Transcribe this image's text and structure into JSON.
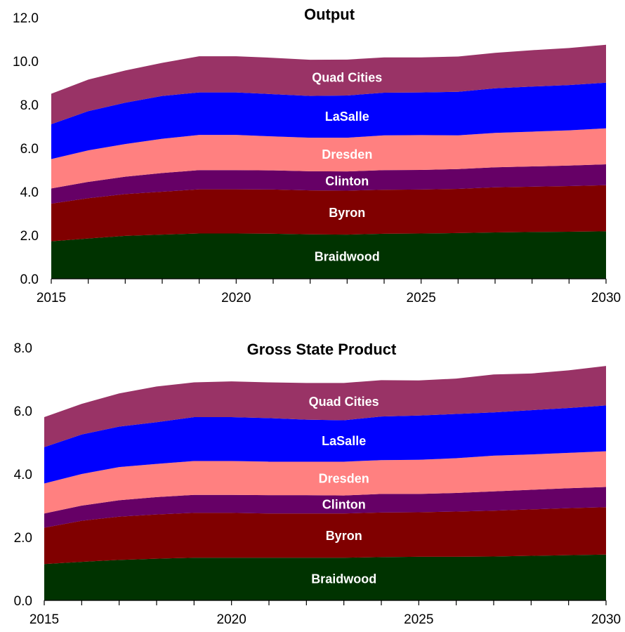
{
  "chart_data": [
    {
      "type": "area",
      "stacked": true,
      "title": "Output",
      "xlabel": "",
      "ylabel": "",
      "x": [
        2015,
        2016,
        2017,
        2018,
        2019,
        2020,
        2021,
        2022,
        2023,
        2024,
        2025,
        2026,
        2027,
        2028,
        2029,
        2030
      ],
      "xticks": [
        "2015",
        "2020",
        "2025",
        "2030"
      ],
      "yticks": [
        "0.0",
        "2.0",
        "4.0",
        "6.0",
        "8.0",
        "10.0",
        "12.0"
      ],
      "ylim": [
        0,
        12
      ],
      "xlim": [
        2015,
        2030
      ],
      "grid": false,
      "legend": "inline labels",
      "series": [
        {
          "name": "Braidwood",
          "color": "#003300",
          "values": [
            1.72,
            1.85,
            1.97,
            2.03,
            2.08,
            2.08,
            2.07,
            2.04,
            2.03,
            2.07,
            2.08,
            2.1,
            2.13,
            2.15,
            2.16,
            2.18
          ]
        },
        {
          "name": "Byron",
          "color": "#800000",
          "values": [
            1.73,
            1.85,
            1.92,
            1.97,
            2.03,
            2.03,
            2.03,
            2.02,
            2.02,
            2.02,
            2.02,
            2.03,
            2.07,
            2.08,
            2.1,
            2.12
          ]
        },
        {
          "name": "Clinton",
          "color": "#660066",
          "values": [
            0.7,
            0.75,
            0.8,
            0.86,
            0.88,
            0.88,
            0.88,
            0.88,
            0.88,
            0.9,
            0.9,
            0.91,
            0.92,
            0.93,
            0.94,
            0.96
          ]
        },
        {
          "name": "Dresden",
          "color": "#ff8080",
          "values": [
            1.35,
            1.45,
            1.5,
            1.57,
            1.62,
            1.62,
            1.56,
            1.54,
            1.55,
            1.6,
            1.6,
            1.55,
            1.58,
            1.6,
            1.62,
            1.65
          ]
        },
        {
          "name": "LaSalle",
          "color": "#0000ff",
          "values": [
            1.6,
            1.8,
            1.9,
            1.97,
            1.95,
            1.95,
            1.94,
            1.92,
            1.94,
            1.96,
            1.96,
            2.0,
            2.05,
            2.07,
            2.08,
            2.1
          ]
        },
        {
          "name": "Quad Cities",
          "color": "#993366",
          "values": [
            1.4,
            1.45,
            1.48,
            1.52,
            1.66,
            1.66,
            1.67,
            1.66,
            1.65,
            1.62,
            1.61,
            1.62,
            1.63,
            1.67,
            1.7,
            1.74
          ]
        }
      ]
    },
    {
      "type": "area",
      "stacked": true,
      "title": "Gross State Product",
      "xlabel": "",
      "ylabel": "",
      "x": [
        2015,
        2016,
        2017,
        2018,
        2019,
        2020,
        2021,
        2022,
        2023,
        2024,
        2025,
        2026,
        2027,
        2028,
        2029,
        2030
      ],
      "xticks": [
        "2015",
        "2020",
        "2025",
        "2030"
      ],
      "yticks": [
        "0.0",
        "2.0",
        "4.0",
        "6.0",
        "8.0"
      ],
      "ylim": [
        0,
        8
      ],
      "xlim": [
        2015,
        2030
      ],
      "grid": false,
      "legend": "inline labels",
      "series": [
        {
          "name": "Braidwood",
          "color": "#003300",
          "values": [
            1.15,
            1.22,
            1.28,
            1.32,
            1.35,
            1.35,
            1.35,
            1.35,
            1.35,
            1.37,
            1.38,
            1.38,
            1.39,
            1.41,
            1.43,
            1.45
          ]
        },
        {
          "name": "Byron",
          "color": "#800000",
          "values": [
            1.15,
            1.3,
            1.37,
            1.4,
            1.42,
            1.42,
            1.4,
            1.4,
            1.4,
            1.41,
            1.41,
            1.43,
            1.45,
            1.47,
            1.49,
            1.5
          ]
        },
        {
          "name": "Clinton",
          "color": "#660066",
          "values": [
            0.45,
            0.48,
            0.52,
            0.55,
            0.57,
            0.57,
            0.58,
            0.58,
            0.57,
            0.59,
            0.58,
            0.59,
            0.61,
            0.62,
            0.63,
            0.64
          ]
        },
        {
          "name": "Dresden",
          "color": "#ff8080",
          "values": [
            0.95,
            1.0,
            1.05,
            1.05,
            1.07,
            1.07,
            1.06,
            1.06,
            1.07,
            1.07,
            1.08,
            1.1,
            1.13,
            1.12,
            1.12,
            1.13
          ]
        },
        {
          "name": "LaSalle",
          "color": "#0000ff",
          "values": [
            1.15,
            1.25,
            1.28,
            1.32,
            1.39,
            1.39,
            1.38,
            1.33,
            1.31,
            1.38,
            1.4,
            1.4,
            1.37,
            1.4,
            1.42,
            1.45
          ]
        },
        {
          "name": "Quad Cities",
          "color": "#993366",
          "values": [
            0.95,
            0.97,
            1.05,
            1.13,
            1.1,
            1.13,
            1.13,
            1.16,
            1.18,
            1.15,
            1.11,
            1.12,
            1.2,
            1.16,
            1.19,
            1.25
          ]
        }
      ]
    }
  ]
}
